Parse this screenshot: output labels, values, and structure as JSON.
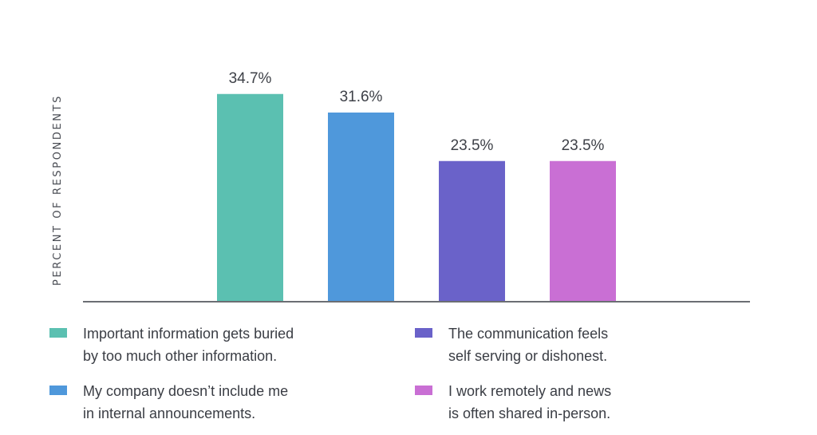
{
  "chart_data": {
    "type": "bar",
    "title": "",
    "ylabel": "PERCENT OF RESPONDENTS",
    "xlabel": "",
    "categories": [
      "Important information gets buried by too much other information.",
      "My company doesn’t include me in internal announcements.",
      "The communication feels self serving or dishonest.",
      "I work remotely and news is often shared in-person."
    ],
    "values": [
      34.7,
      31.6,
      23.5,
      23.5
    ],
    "value_labels": [
      "34.7%",
      "31.6%",
      "23.5%",
      "23.5%"
    ],
    "colors": [
      "#5bc0b1",
      "#4f98db",
      "#6a62c9",
      "#c96fd4"
    ],
    "ylim": [
      0,
      40
    ],
    "grid": false,
    "legend": "bottom"
  },
  "legend": {
    "items": [
      {
        "line1": "Important information gets buried",
        "line2": "by too much other information.",
        "color": "#5bc0b1"
      },
      {
        "line1": "My company doesn’t include me",
        "line2": "in internal announcements.",
        "color": "#4f98db"
      },
      {
        "line1": "The communication feels",
        "line2": "self serving or dishonest.",
        "color": "#6a62c9"
      },
      {
        "line1": "I work remotely and news",
        "line2": "is often shared in-person.",
        "color": "#c96fd4"
      }
    ]
  }
}
